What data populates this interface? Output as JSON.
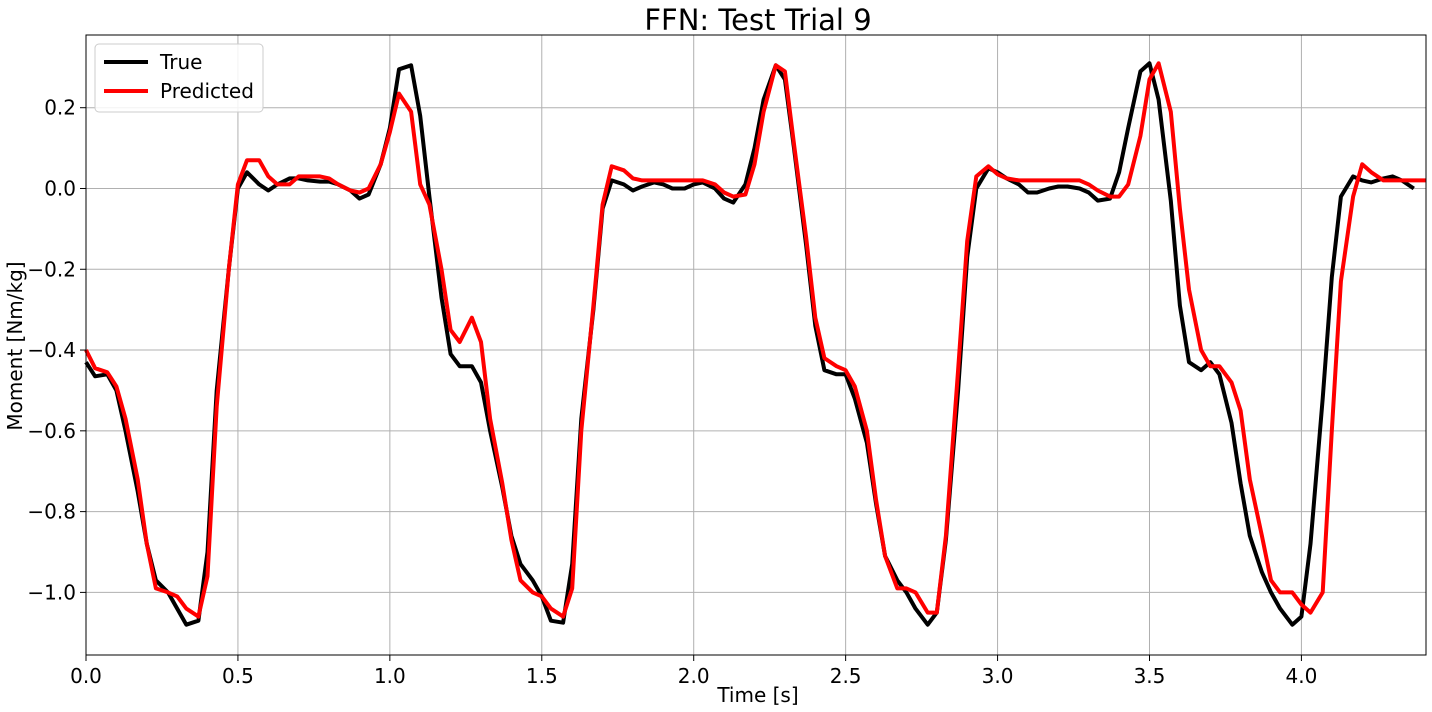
{
  "chart_data": {
    "type": "line",
    "title": "FFN: Test Trial 9",
    "xlabel": "Time [s]",
    "ylabel": "Moment [Nm/kg]",
    "xlim": [
      0.0,
      4.41
    ],
    "ylim": [
      -1.155,
      0.38
    ],
    "xticks": [
      {
        "value": 0.0,
        "label": "0.0"
      },
      {
        "value": 0.5,
        "label": "0.5"
      },
      {
        "value": 1.0,
        "label": "1.0"
      },
      {
        "value": 1.5,
        "label": "1.5"
      },
      {
        "value": 2.0,
        "label": "2.0"
      },
      {
        "value": 2.5,
        "label": "2.5"
      },
      {
        "value": 3.0,
        "label": "3.0"
      },
      {
        "value": 3.5,
        "label": "3.5"
      },
      {
        "value": 4.0,
        "label": "4.0"
      }
    ],
    "yticks": [
      {
        "value": -1.0,
        "label": "−1.0"
      },
      {
        "value": -0.8,
        "label": "−0.8"
      },
      {
        "value": -0.6,
        "label": "−0.6"
      },
      {
        "value": -0.4,
        "label": "−0.4"
      },
      {
        "value": -0.2,
        "label": "−0.2"
      },
      {
        "value": 0.0,
        "label": "0.0"
      },
      {
        "value": 0.2,
        "label": "0.2"
      }
    ],
    "grid": true,
    "legend_position": "upper-left",
    "series": [
      {
        "name": "True",
        "color": "#000000",
        "points": [
          [
            0.0,
            -0.43
          ],
          [
            0.03,
            -0.465
          ],
          [
            0.07,
            -0.46
          ],
          [
            0.1,
            -0.5
          ],
          [
            0.13,
            -0.6
          ],
          [
            0.17,
            -0.75
          ],
          [
            0.2,
            -0.88
          ],
          [
            0.23,
            -0.97
          ],
          [
            0.27,
            -1.0
          ],
          [
            0.3,
            -1.04
          ],
          [
            0.33,
            -1.08
          ],
          [
            0.37,
            -1.07
          ],
          [
            0.4,
            -0.9
          ],
          [
            0.43,
            -0.5
          ],
          [
            0.47,
            -0.2
          ],
          [
            0.5,
            0.0
          ],
          [
            0.53,
            0.04
          ],
          [
            0.57,
            0.01
          ],
          [
            0.6,
            -0.005
          ],
          [
            0.63,
            0.01
          ],
          [
            0.67,
            0.025
          ],
          [
            0.7,
            0.025
          ],
          [
            0.73,
            0.02
          ],
          [
            0.77,
            0.017
          ],
          [
            0.8,
            0.017
          ],
          [
            0.83,
            0.01
          ],
          [
            0.87,
            -0.005
          ],
          [
            0.9,
            -0.025
          ],
          [
            0.93,
            -0.015
          ],
          [
            0.97,
            0.06
          ],
          [
            1.0,
            0.15
          ],
          [
            1.03,
            0.295
          ],
          [
            1.07,
            0.305
          ],
          [
            1.1,
            0.18
          ],
          [
            1.13,
            -0.02
          ],
          [
            1.17,
            -0.27
          ],
          [
            1.2,
            -0.41
          ],
          [
            1.23,
            -0.44
          ],
          [
            1.27,
            -0.44
          ],
          [
            1.3,
            -0.48
          ],
          [
            1.33,
            -0.6
          ],
          [
            1.37,
            -0.74
          ],
          [
            1.4,
            -0.86
          ],
          [
            1.43,
            -0.93
          ],
          [
            1.47,
            -0.97
          ],
          [
            1.5,
            -1.01
          ],
          [
            1.53,
            -1.07
          ],
          [
            1.57,
            -1.075
          ],
          [
            1.6,
            -0.93
          ],
          [
            1.63,
            -0.57
          ],
          [
            1.67,
            -0.3
          ],
          [
            1.7,
            -0.05
          ],
          [
            1.73,
            0.02
          ],
          [
            1.77,
            0.01
          ],
          [
            1.8,
            -0.005
          ],
          [
            1.83,
            0.005
          ],
          [
            1.87,
            0.015
          ],
          [
            1.9,
            0.01
          ],
          [
            1.93,
            0.0
          ],
          [
            1.97,
            0.0
          ],
          [
            2.0,
            0.01
          ],
          [
            2.03,
            0.015
          ],
          [
            2.07,
            0.0
          ],
          [
            2.1,
            -0.025
          ],
          [
            2.13,
            -0.035
          ],
          [
            2.17,
            0.01
          ],
          [
            2.2,
            0.1
          ],
          [
            2.23,
            0.22
          ],
          [
            2.27,
            0.305
          ],
          [
            2.3,
            0.27
          ],
          [
            2.33,
            0.1
          ],
          [
            2.37,
            -0.14
          ],
          [
            2.4,
            -0.34
          ],
          [
            2.43,
            -0.45
          ],
          [
            2.47,
            -0.46
          ],
          [
            2.5,
            -0.46
          ],
          [
            2.53,
            -0.52
          ],
          [
            2.57,
            -0.63
          ],
          [
            2.6,
            -0.78
          ],
          [
            2.63,
            -0.91
          ],
          [
            2.67,
            -0.97
          ],
          [
            2.7,
            -1.0
          ],
          [
            2.73,
            -1.04
          ],
          [
            2.77,
            -1.08
          ],
          [
            2.8,
            -1.05
          ],
          [
            2.83,
            -0.87
          ],
          [
            2.87,
            -0.5
          ],
          [
            2.9,
            -0.17
          ],
          [
            2.93,
            0.0
          ],
          [
            2.97,
            0.05
          ],
          [
            3.0,
            0.04
          ],
          [
            3.03,
            0.025
          ],
          [
            3.07,
            0.01
          ],
          [
            3.1,
            -0.01
          ],
          [
            3.13,
            -0.01
          ],
          [
            3.17,
            0.0
          ],
          [
            3.2,
            0.005
          ],
          [
            3.23,
            0.005
          ],
          [
            3.27,
            0.0
          ],
          [
            3.3,
            -0.01
          ],
          [
            3.33,
            -0.03
          ],
          [
            3.37,
            -0.025
          ],
          [
            3.4,
            0.04
          ],
          [
            3.43,
            0.15
          ],
          [
            3.47,
            0.29
          ],
          [
            3.5,
            0.31
          ],
          [
            3.53,
            0.22
          ],
          [
            3.57,
            -0.03
          ],
          [
            3.6,
            -0.29
          ],
          [
            3.63,
            -0.43
          ],
          [
            3.67,
            -0.45
          ],
          [
            3.7,
            -0.43
          ],
          [
            3.73,
            -0.46
          ],
          [
            3.77,
            -0.58
          ],
          [
            3.8,
            -0.73
          ],
          [
            3.83,
            -0.86
          ],
          [
            3.87,
            -0.95
          ],
          [
            3.9,
            -1.0
          ],
          [
            3.93,
            -1.04
          ],
          [
            3.97,
            -1.08
          ],
          [
            4.0,
            -1.06
          ],
          [
            4.03,
            -0.88
          ],
          [
            4.07,
            -0.52
          ],
          [
            4.1,
            -0.22
          ],
          [
            4.13,
            -0.02
          ],
          [
            4.17,
            0.03
          ],
          [
            4.2,
            0.02
          ],
          [
            4.23,
            0.015
          ],
          [
            4.27,
            0.025
          ],
          [
            4.3,
            0.03
          ],
          [
            4.33,
            0.02
          ],
          [
            4.37,
            0.0
          ]
        ]
      },
      {
        "name": "Predicted",
        "color": "#ff0000",
        "points": [
          [
            0.0,
            -0.4
          ],
          [
            0.03,
            -0.445
          ],
          [
            0.07,
            -0.455
          ],
          [
            0.1,
            -0.49
          ],
          [
            0.13,
            -0.57
          ],
          [
            0.17,
            -0.72
          ],
          [
            0.2,
            -0.88
          ],
          [
            0.23,
            -0.99
          ],
          [
            0.27,
            -1.0
          ],
          [
            0.3,
            -1.01
          ],
          [
            0.33,
            -1.04
          ],
          [
            0.37,
            -1.06
          ],
          [
            0.4,
            -0.96
          ],
          [
            0.43,
            -0.54
          ],
          [
            0.47,
            -0.2
          ],
          [
            0.5,
            0.01
          ],
          [
            0.53,
            0.07
          ],
          [
            0.57,
            0.07
          ],
          [
            0.6,
            0.03
          ],
          [
            0.63,
            0.01
          ],
          [
            0.67,
            0.01
          ],
          [
            0.7,
            0.03
          ],
          [
            0.73,
            0.03
          ],
          [
            0.77,
            0.03
          ],
          [
            0.8,
            0.025
          ],
          [
            0.83,
            0.01
          ],
          [
            0.87,
            -0.005
          ],
          [
            0.9,
            -0.01
          ],
          [
            0.93,
            0.0
          ],
          [
            0.97,
            0.06
          ],
          [
            1.0,
            0.14
          ],
          [
            1.03,
            0.235
          ],
          [
            1.07,
            0.19
          ],
          [
            1.1,
            0.01
          ],
          [
            1.13,
            -0.04
          ],
          [
            1.17,
            -0.2
          ],
          [
            1.2,
            -0.35
          ],
          [
            1.23,
            -0.38
          ],
          [
            1.27,
            -0.32
          ],
          [
            1.3,
            -0.38
          ],
          [
            1.33,
            -0.57
          ],
          [
            1.37,
            -0.73
          ],
          [
            1.4,
            -0.87
          ],
          [
            1.43,
            -0.97
          ],
          [
            1.47,
            -1.0
          ],
          [
            1.5,
            -1.01
          ],
          [
            1.53,
            -1.04
          ],
          [
            1.57,
            -1.06
          ],
          [
            1.6,
            -0.99
          ],
          [
            1.63,
            -0.6
          ],
          [
            1.67,
            -0.29
          ],
          [
            1.7,
            -0.04
          ],
          [
            1.73,
            0.055
          ],
          [
            1.77,
            0.045
          ],
          [
            1.8,
            0.025
          ],
          [
            1.83,
            0.02
          ],
          [
            1.87,
            0.02
          ],
          [
            1.9,
            0.02
          ],
          [
            1.93,
            0.02
          ],
          [
            1.97,
            0.02
          ],
          [
            2.0,
            0.02
          ],
          [
            2.03,
            0.02
          ],
          [
            2.07,
            0.01
          ],
          [
            2.1,
            -0.01
          ],
          [
            2.13,
            -0.02
          ],
          [
            2.17,
            -0.015
          ],
          [
            2.2,
            0.06
          ],
          [
            2.23,
            0.19
          ],
          [
            2.27,
            0.305
          ],
          [
            2.3,
            0.29
          ],
          [
            2.33,
            0.11
          ],
          [
            2.37,
            -0.12
          ],
          [
            2.4,
            -0.32
          ],
          [
            2.43,
            -0.42
          ],
          [
            2.47,
            -0.44
          ],
          [
            2.5,
            -0.45
          ],
          [
            2.53,
            -0.49
          ],
          [
            2.57,
            -0.6
          ],
          [
            2.6,
            -0.77
          ],
          [
            2.63,
            -0.91
          ],
          [
            2.67,
            -0.99
          ],
          [
            2.7,
            -0.99
          ],
          [
            2.73,
            -1.0
          ],
          [
            2.77,
            -1.05
          ],
          [
            2.8,
            -1.05
          ],
          [
            2.83,
            -0.86
          ],
          [
            2.87,
            -0.45
          ],
          [
            2.9,
            -0.13
          ],
          [
            2.93,
            0.03
          ],
          [
            2.97,
            0.055
          ],
          [
            3.0,
            0.035
          ],
          [
            3.03,
            0.025
          ],
          [
            3.07,
            0.02
          ],
          [
            3.1,
            0.02
          ],
          [
            3.13,
            0.02
          ],
          [
            3.17,
            0.02
          ],
          [
            3.2,
            0.02
          ],
          [
            3.23,
            0.02
          ],
          [
            3.27,
            0.02
          ],
          [
            3.3,
            0.01
          ],
          [
            3.33,
            -0.005
          ],
          [
            3.37,
            -0.02
          ],
          [
            3.4,
            -0.02
          ],
          [
            3.43,
            0.01
          ],
          [
            3.47,
            0.13
          ],
          [
            3.5,
            0.27
          ],
          [
            3.53,
            0.31
          ],
          [
            3.57,
            0.19
          ],
          [
            3.6,
            -0.05
          ],
          [
            3.63,
            -0.25
          ],
          [
            3.67,
            -0.4
          ],
          [
            3.7,
            -0.44
          ],
          [
            3.73,
            -0.44
          ],
          [
            3.77,
            -0.48
          ],
          [
            3.8,
            -0.55
          ],
          [
            3.83,
            -0.72
          ],
          [
            3.87,
            -0.86
          ],
          [
            3.9,
            -0.97
          ],
          [
            3.93,
            -1.0
          ],
          [
            3.97,
            -1.0
          ],
          [
            4.0,
            -1.03
          ],
          [
            4.03,
            -1.05
          ],
          [
            4.07,
            -1.0
          ],
          [
            4.1,
            -0.6
          ],
          [
            4.13,
            -0.23
          ],
          [
            4.17,
            -0.02
          ],
          [
            4.2,
            0.06
          ],
          [
            4.23,
            0.04
          ],
          [
            4.27,
            0.02
          ],
          [
            4.3,
            0.02
          ],
          [
            4.33,
            0.02
          ],
          [
            4.37,
            0.02
          ],
          [
            4.41,
            0.02
          ]
        ]
      }
    ]
  }
}
